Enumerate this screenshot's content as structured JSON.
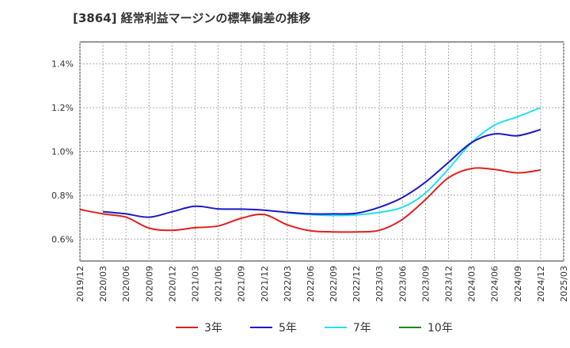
{
  "chart_data": {
    "type": "line",
    "title": "[3864]  経常利益マージンの標準偏差の推移",
    "xlabel": "",
    "ylabel": "",
    "ylim": [
      0.5,
      1.5
    ],
    "y_ticks": [
      0.6,
      0.8,
      1.0,
      1.2,
      1.4
    ],
    "y_tick_labels": [
      "0.6%",
      "0.8%",
      "1.0%",
      "1.2%",
      "1.4%"
    ],
    "grid": true,
    "legend_position": "bottom",
    "x": [
      "2019/12",
      "2020/03",
      "2020/06",
      "2020/09",
      "2020/12",
      "2021/03",
      "2021/06",
      "2021/09",
      "2021/12",
      "2022/03",
      "2022/06",
      "2022/09",
      "2022/12",
      "2023/03",
      "2023/06",
      "2023/09",
      "2023/12",
      "2024/03",
      "2024/06",
      "2024/09",
      "2024/12",
      "2025/03"
    ],
    "series": [
      {
        "name": "3年",
        "color": "#e02020",
        "values": [
          0.735,
          0.715,
          0.7,
          0.65,
          0.64,
          0.652,
          0.66,
          0.695,
          0.712,
          0.665,
          0.638,
          0.633,
          0.633,
          0.64,
          0.69,
          0.78,
          0.88,
          0.922,
          0.918,
          0.902,
          0.915,
          null
        ]
      },
      {
        "name": "5年",
        "color": "#1a1ac8",
        "values": [
          null,
          0.725,
          0.715,
          0.7,
          0.725,
          0.75,
          0.738,
          0.737,
          0.732,
          0.722,
          0.715,
          0.715,
          0.718,
          0.745,
          0.79,
          0.86,
          0.95,
          1.04,
          1.08,
          1.072,
          1.1,
          null
        ]
      },
      {
        "name": "7年",
        "color": "#20e0ee",
        "values": [
          null,
          null,
          null,
          null,
          null,
          null,
          null,
          null,
          null,
          0.72,
          0.712,
          0.708,
          0.71,
          0.722,
          0.745,
          0.81,
          0.92,
          1.04,
          1.12,
          1.158,
          1.2,
          null
        ]
      },
      {
        "name": "10年",
        "color": "#1a8a1a",
        "values": [
          null,
          null,
          null,
          null,
          null,
          null,
          null,
          null,
          null,
          null,
          null,
          null,
          null,
          null,
          null,
          null,
          null,
          null,
          null,
          null,
          null,
          null
        ]
      }
    ]
  }
}
